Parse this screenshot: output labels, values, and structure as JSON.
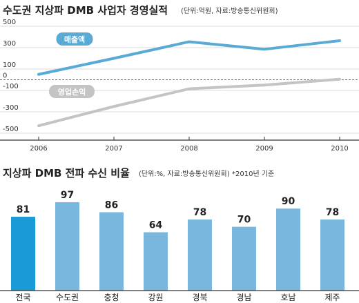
{
  "chart_data": [
    {
      "type": "line",
      "title": "수도권 지상파 DMB 사업자 경영실적",
      "subtitle": "(단위:억원, 자료:방송통신위원회)",
      "x": [
        "2006",
        "2007",
        "2008",
        "2009",
        "2010"
      ],
      "series": [
        {
          "name": "매출액",
          "values": [
            50,
            200,
            355,
            285,
            365
          ],
          "color": "#5aaad6"
        },
        {
          "name": "영업손익",
          "values": [
            -430,
            -250,
            -85,
            -50,
            5
          ],
          "color": "#c4c4c4"
        }
      ],
      "yticks": [
        "500",
        "300",
        "100",
        "0",
        "-100",
        "-300",
        "-500"
      ],
      "ytick_values": [
        500,
        300,
        100,
        0,
        -100,
        -300,
        -500
      ],
      "ylim": [
        -500,
        500
      ],
      "grid": true
    },
    {
      "type": "bar",
      "title": "지상파 DMB 전파 수신 비율",
      "subtitle": "(단위:%, 자료:방송통신위원회)",
      "note": "*2010년 기준",
      "categories": [
        "전국",
        "수도권",
        "충청",
        "강원",
        "경북",
        "경남",
        "호남",
        "제주"
      ],
      "values": [
        81,
        97,
        86,
        64,
        78,
        70,
        90,
        78
      ],
      "value_labels": [
        "81",
        "97",
        "86",
        "64",
        "78",
        "70",
        "90",
        "78"
      ],
      "colors": {
        "highlight": "#1a9ad6",
        "bar": "#79b7de"
      },
      "ylim": [
        0,
        100
      ]
    }
  ]
}
